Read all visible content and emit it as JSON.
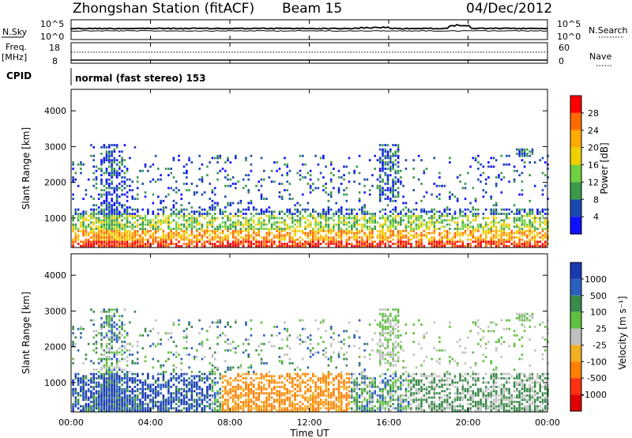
{
  "header": {
    "station": "Zhongshan Station (fitACF)",
    "beam": "Beam 15",
    "date": "04/Dec/2012"
  },
  "top_panels": {
    "nsky_label": "N.Sky",
    "nsky_ticks": [
      "10^5",
      "10^0"
    ],
    "nsearch_label": "N.Search",
    "nsearch_ticks": [
      "10^5",
      "10^0"
    ],
    "freq_label_1": "Freq.",
    "freq_label_2": "[MHz]",
    "freq_ticks": [
      "18",
      "8"
    ],
    "nave_label": "Nave",
    "nave_ticks": [
      "60",
      "0"
    ],
    "cpid_label": "CPID",
    "cpid_text": "normal (fast stereo) 153"
  },
  "axes": {
    "ylabel": "Slant Range [km]",
    "yticks": [
      "4000",
      "3000",
      "2000",
      "1000"
    ],
    "xlabel": "Time UT",
    "xticks": [
      "00:00",
      "04:00",
      "08:00",
      "12:00",
      "16:00",
      "20:00",
      "00:00"
    ]
  },
  "power_scale": {
    "label": "Power [dB]",
    "ticks": [
      "28",
      "24",
      "20",
      "16",
      "12",
      "8",
      "4"
    ],
    "colors": [
      "#ff0000",
      "#ff6a00",
      "#ffaa00",
      "#f0d000",
      "#70d040",
      "#3a9a4a",
      "#1a4ab0",
      "#1010ff"
    ]
  },
  "velocity_scale": {
    "label": "Velocity [m s⁻¹]",
    "ticks": [
      "1000",
      "500",
      "100",
      "25",
      "-25",
      "-100",
      "-500",
      "-1000"
    ],
    "colors": [
      "#1a3ab0",
      "#2a60c0",
      "#3a8a4a",
      "#60c040",
      "#c0c0c0",
      "#f0b020",
      "#ff8000",
      "#ff3010",
      "#e00000"
    ]
  },
  "chart_data": [
    {
      "type": "heatmap",
      "title": "Power",
      "xlabel": "Time UT",
      "ylabel": "Slant Range [km]",
      "xlim": [
        "00:00",
        "24:00"
      ],
      "ylim": [
        180,
        4600
      ],
      "colorbar_label": "Power [dB]",
      "colorbar_ticks": [
        4,
        8,
        12,
        16,
        20,
        24,
        28
      ]
    },
    {
      "type": "heatmap",
      "title": "Velocity",
      "xlabel": "Time UT",
      "ylabel": "Slant Range [km]",
      "xlim": [
        "00:00",
        "24:00"
      ],
      "ylim": [
        180,
        4600
      ],
      "colorbar_label": "Velocity [m s-1]",
      "colorbar_ticks": [
        1000,
        500,
        100,
        25,
        -25,
        -100,
        -500,
        -1000
      ]
    }
  ]
}
